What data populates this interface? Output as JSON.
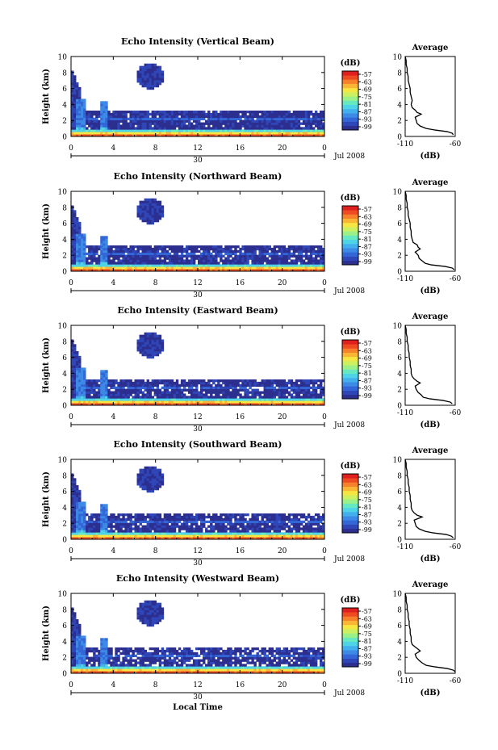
{
  "chart_data": {
    "type": "heatmap",
    "xlabel": "Local Time",
    "x_ticks": [
      "0",
      "4",
      "8",
      "12",
      "16",
      "20",
      "0"
    ],
    "xlim": [
      0,
      24
    ],
    "date_label": "30",
    "month_label": "Jul 2008",
    "ylabel": "Height (km)",
    "y_ticks": [
      "0",
      "2",
      "4",
      "6",
      "8",
      "10"
    ],
    "ylim": [
      0,
      10
    ],
    "colorbar": {
      "unit": "(dB)",
      "ticks": [
        "-57",
        "-63",
        "-69",
        "-75",
        "-81",
        "-87",
        "-93",
        "-99"
      ],
      "range": [
        -99,
        -57
      ],
      "colors": [
        "#2c2f8f",
        "#2f46b8",
        "#3366d6",
        "#3c8ae6",
        "#43b0ee",
        "#4fd3e6",
        "#66e8c0",
        "#9cf088",
        "#ccf060",
        "#f5e642",
        "#fbb534",
        "#f7812a",
        "#ee4b22",
        "#e0201e"
      ]
    },
    "profile": {
      "title": "Average",
      "xlabel": "(dB)",
      "x_ticks": [
        "-110",
        "-60"
      ],
      "xlim": [
        -110,
        -60
      ],
      "y_ticks": [
        "0",
        "2",
        "4",
        "6",
        "8",
        "10"
      ],
      "ylim": [
        0,
        10
      ]
    },
    "panels": [
      {
        "title": "Echo Intensity (Vertical Beam)",
        "profile_heights": [
          0.2,
          0.4,
          0.6,
          0.8,
          1.0,
          1.3,
          1.6,
          2.0,
          2.4,
          2.8,
          3.0,
          3.3,
          3.6,
          4.0,
          4.5,
          5.0,
          5.5,
          6.0,
          6.5,
          7.0,
          7.5,
          8.0,
          8.5,
          9.0,
          9.5,
          10.0
        ],
        "profile_values": [
          -62,
          -63,
          -68,
          -80,
          -89,
          -95,
          -98,
          -99,
          -100,
          -94,
          -98,
          -100,
          -103,
          -104,
          -103,
          -104,
          -105,
          -105,
          -106,
          -107,
          -107,
          -108,
          -108,
          -109,
          -109,
          -110
        ]
      },
      {
        "title": "Echo Intensity (Northward Beam)",
        "profile_heights": [
          0.2,
          0.4,
          0.6,
          0.8,
          1.0,
          1.3,
          1.6,
          2.0,
          2.4,
          2.8,
          3.0,
          3.3,
          3.6,
          4.0,
          4.5,
          5.0,
          5.5,
          6.0,
          6.5,
          7.0,
          7.5,
          8.0,
          8.5,
          9.0,
          9.5,
          10.0
        ],
        "profile_values": [
          -61,
          -63,
          -70,
          -84,
          -90,
          -93,
          -96,
          -97,
          -100,
          -95,
          -97,
          -98,
          -102,
          -103,
          -104,
          -104,
          -105,
          -105,
          -106,
          -107,
          -107,
          -108,
          -108,
          -109,
          -109,
          -110
        ]
      },
      {
        "title": "Echo Intensity (Eastward Beam)",
        "profile_heights": [
          0.2,
          0.4,
          0.6,
          0.8,
          1.0,
          1.3,
          1.6,
          2.0,
          2.4,
          2.8,
          3.0,
          3.3,
          3.6,
          4.0,
          4.5,
          5.0,
          5.5,
          6.0,
          6.5,
          7.0,
          7.5,
          8.0,
          8.5,
          9.0,
          9.5,
          10.0
        ],
        "profile_values": [
          -63,
          -65,
          -72,
          -85,
          -92,
          -94,
          -97,
          -99,
          -100,
          -95,
          -98,
          -101,
          -103,
          -104,
          -104,
          -105,
          -105,
          -106,
          -106,
          -107,
          -107,
          -108,
          -108,
          -109,
          -109,
          -110
        ]
      },
      {
        "title": "Echo Intensity (Southward Beam)",
        "profile_heights": [
          0.2,
          0.4,
          0.6,
          0.8,
          1.0,
          1.3,
          1.6,
          2.0,
          2.4,
          2.8,
          3.0,
          3.3,
          3.6,
          4.0,
          4.5,
          5.0,
          5.5,
          6.0,
          6.5,
          7.0,
          7.5,
          8.0,
          8.5,
          9.0,
          9.5,
          10.0
        ],
        "profile_values": [
          -62,
          -64,
          -69,
          -82,
          -90,
          -96,
          -99,
          -100,
          -101,
          -93,
          -98,
          -101,
          -103,
          -104,
          -104,
          -105,
          -105,
          -106,
          -106,
          -107,
          -107,
          -108,
          -108,
          -109,
          -109,
          -110
        ]
      },
      {
        "title": "Echo Intensity (Westward Beam)",
        "profile_heights": [
          0.2,
          0.4,
          0.6,
          0.8,
          1.0,
          1.3,
          1.6,
          2.0,
          2.4,
          2.8,
          3.0,
          3.3,
          3.6,
          4.0,
          4.5,
          5.0,
          5.5,
          6.0,
          6.5,
          7.0,
          7.5,
          8.0,
          8.5,
          9.0,
          9.5,
          10.0
        ],
        "profile_values": [
          -60,
          -62,
          -68,
          -80,
          -89,
          -93,
          -96,
          -99,
          -100,
          -95,
          -97,
          -100,
          -103,
          -104,
          -104,
          -105,
          -105,
          -106,
          -106,
          -107,
          -107,
          -108,
          -108,
          -109,
          -109,
          -110
        ]
      }
    ]
  }
}
